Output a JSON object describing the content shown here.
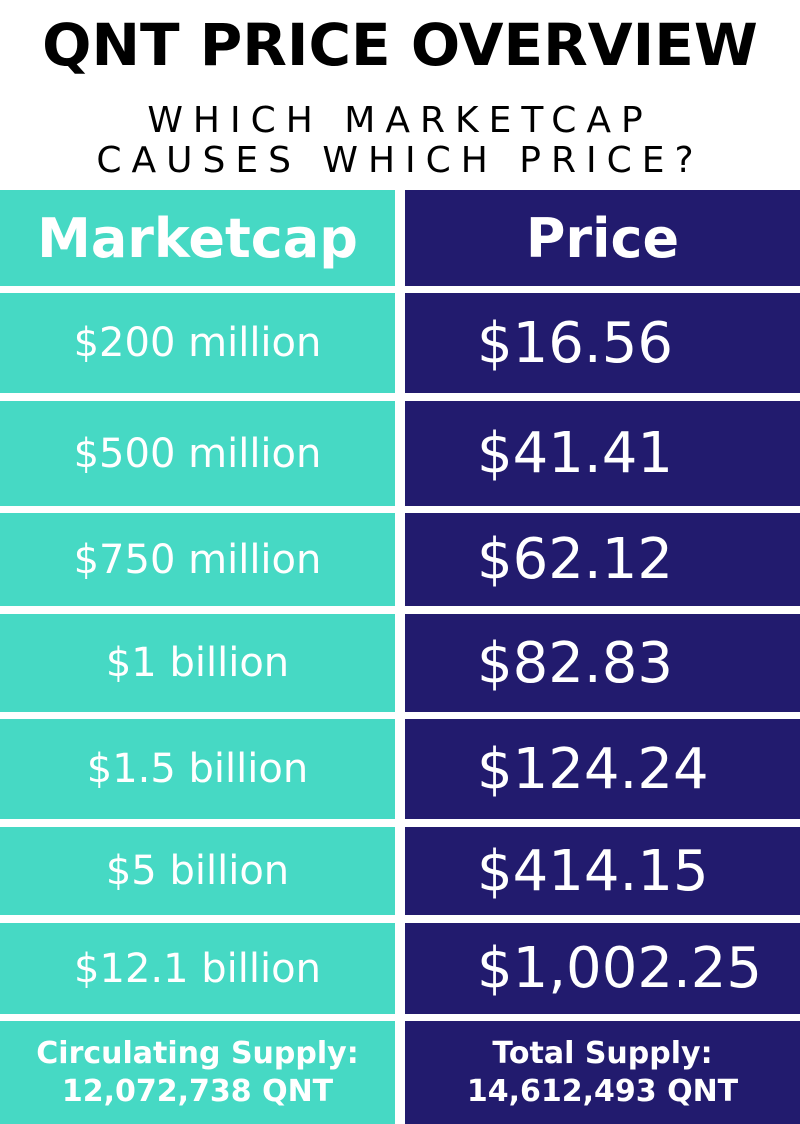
{
  "title": "QNT PRICE OVERVIEW",
  "subtitle": {
    "line1": "WHICH MARKETCAP",
    "line2": "CAUSES WHICH PRICE?"
  },
  "colors": {
    "teal": "#46d9c4",
    "navy": "#221b6e",
    "text": "#ffffff"
  },
  "table": {
    "header": {
      "marketcap": "Marketcap",
      "price": "Price"
    },
    "rows": [
      {
        "marketcap": "$200 million",
        "price": "$16.56"
      },
      {
        "marketcap": "$500 million",
        "price": "$41.41"
      },
      {
        "marketcap": "$750 million",
        "price": "$62.12"
      },
      {
        "marketcap": "$1 billion",
        "price": "$82.83"
      },
      {
        "marketcap": "$1.5 billion",
        "price": "$124.24"
      },
      {
        "marketcap": "$5 billion",
        "price": "$414.15"
      },
      {
        "marketcap": "$12.1 billion",
        "price": "$1,002.25"
      }
    ]
  },
  "footer": {
    "circulating_label": "Circulating Supply:",
    "circulating_value": "12,072,738 QNT",
    "total_label": "Total Supply:",
    "total_value": "14,612,493 QNT"
  }
}
